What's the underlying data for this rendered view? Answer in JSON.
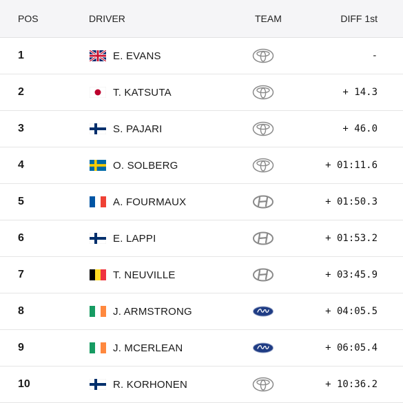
{
  "header": {
    "pos": "POS",
    "driver": "DRIVER",
    "team": "TEAM",
    "diff": "DIFF 1st"
  },
  "rows": [
    {
      "pos": "1",
      "flag": "uk-flag-icon",
      "driver": "E. EVANS",
      "team": "toyota-logo-icon",
      "diff": "-"
    },
    {
      "pos": "2",
      "flag": "japan-flag-icon",
      "driver": "T. KATSUTA",
      "team": "toyota-logo-icon",
      "diff": "+ 14.3"
    },
    {
      "pos": "3",
      "flag": "finland-flag-icon",
      "driver": "S. PAJARI",
      "team": "toyota-logo-icon",
      "diff": "+ 46.0"
    },
    {
      "pos": "4",
      "flag": "sweden-flag-icon",
      "driver": "O. SOLBERG",
      "team": "toyota-logo-icon",
      "diff": "+ 01:11.6"
    },
    {
      "pos": "5",
      "flag": "france-flag-icon",
      "driver": "A. FOURMAUX",
      "team": "hyundai-logo-icon",
      "diff": "+ 01:50.3"
    },
    {
      "pos": "6",
      "flag": "finland-flag-icon",
      "driver": "E. LAPPI",
      "team": "hyundai-logo-icon",
      "diff": "+ 01:53.2"
    },
    {
      "pos": "7",
      "flag": "belgium-flag-icon",
      "driver": "T. NEUVILLE",
      "team": "hyundai-logo-icon",
      "diff": "+ 03:45.9"
    },
    {
      "pos": "8",
      "flag": "ireland-flag-icon",
      "driver": "J. ARMSTRONG",
      "team": "ford-logo-icon",
      "diff": "+ 04:05.5"
    },
    {
      "pos": "9",
      "flag": "ireland-flag-icon",
      "driver": "J. MCERLEAN",
      "team": "ford-logo-icon",
      "diff": "+ 06:05.4"
    },
    {
      "pos": "10",
      "flag": "finland-flag-icon",
      "driver": "R. KORHONEN",
      "team": "toyota-logo-icon",
      "diff": "+ 10:36.2"
    }
  ],
  "colors": {
    "header_bg": "#f5f5f7",
    "row_border": "#e5e5e5",
    "ford_blue": "#1f3c84",
    "logo_gray": "#8a8a8a"
  }
}
